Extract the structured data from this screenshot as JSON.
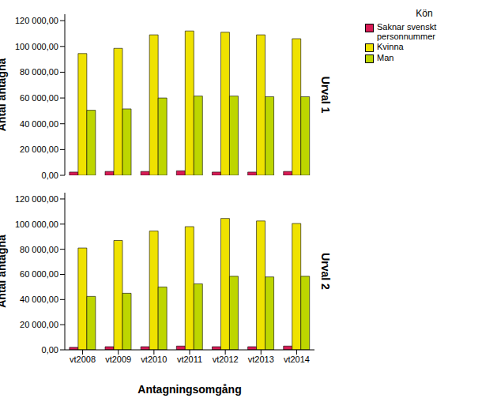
{
  "chart_data": [
    {
      "type": "bar",
      "title": "Urval 1",
      "ylabel": "Antal antagna",
      "categories": [
        "vt2008",
        "vt2009",
        "vt2010",
        "vt2011",
        "vt2012",
        "vt2013",
        "vt2014"
      ],
      "series": [
        {
          "name": "Saknar svenskt personnummer",
          "color": "#d81b55",
          "values": [
            2500,
            3000,
            3000,
            3500,
            2500,
            2500,
            3000
          ]
        },
        {
          "name": "Kvinna",
          "color": "#efe200",
          "values": [
            94500,
            98500,
            109000,
            112000,
            111000,
            109000,
            106000
          ]
        },
        {
          "name": "Man",
          "color": "#bdd600",
          "values": [
            50500,
            51500,
            60000,
            61500,
            61500,
            61000,
            61000
          ]
        }
      ],
      "ylim": [
        0,
        125000
      ],
      "yticks": [
        {
          "value": 0,
          "label": "0,00"
        },
        {
          "value": 20000,
          "label": "20 000,00"
        },
        {
          "value": 40000,
          "label": "40 000,00"
        },
        {
          "value": 60000,
          "label": "60 000,00"
        },
        {
          "value": 80000,
          "label": "80 000,00"
        },
        {
          "value": 100000,
          "label": "100 000,00"
        },
        {
          "value": 120000,
          "label": "120 000,00"
        }
      ],
      "tick_labels": "y",
      "legend": "right",
      "legend_title": "Kön"
    },
    {
      "type": "bar",
      "title": "Urval 2",
      "ylabel": "Antal antagna",
      "xlabel": "Antagningsomgång",
      "categories": [
        "vt2008",
        "vt2009",
        "vt2010",
        "vt2011",
        "vt2012",
        "vt2013",
        "vt2014"
      ],
      "series": [
        {
          "name": "Saknar svenskt personnummer",
          "color": "#d81b55",
          "values": [
            2000,
            2500,
            2500,
            3000,
            2500,
            2500,
            3000
          ]
        },
        {
          "name": "Kvinna",
          "color": "#efe200",
          "values": [
            81000,
            87000,
            94500,
            98000,
            104500,
            102500,
            100500
          ]
        },
        {
          "name": "Man",
          "color": "#bdd600",
          "values": [
            42500,
            45000,
            50000,
            52500,
            58500,
            58000,
            58500
          ]
        }
      ],
      "ylim": [
        0,
        125000
      ],
      "yticks": [
        {
          "value": 0,
          "label": "0,00"
        },
        {
          "value": 20000,
          "label": "20 000,00"
        },
        {
          "value": 40000,
          "label": "40 000,00"
        },
        {
          "value": 60000,
          "label": "60 000,00"
        },
        {
          "value": 80000,
          "label": "80 000,00"
        },
        {
          "value": 100000,
          "label": "100 000,00"
        },
        {
          "value": 120000,
          "label": "120 000,00"
        }
      ]
    }
  ]
}
